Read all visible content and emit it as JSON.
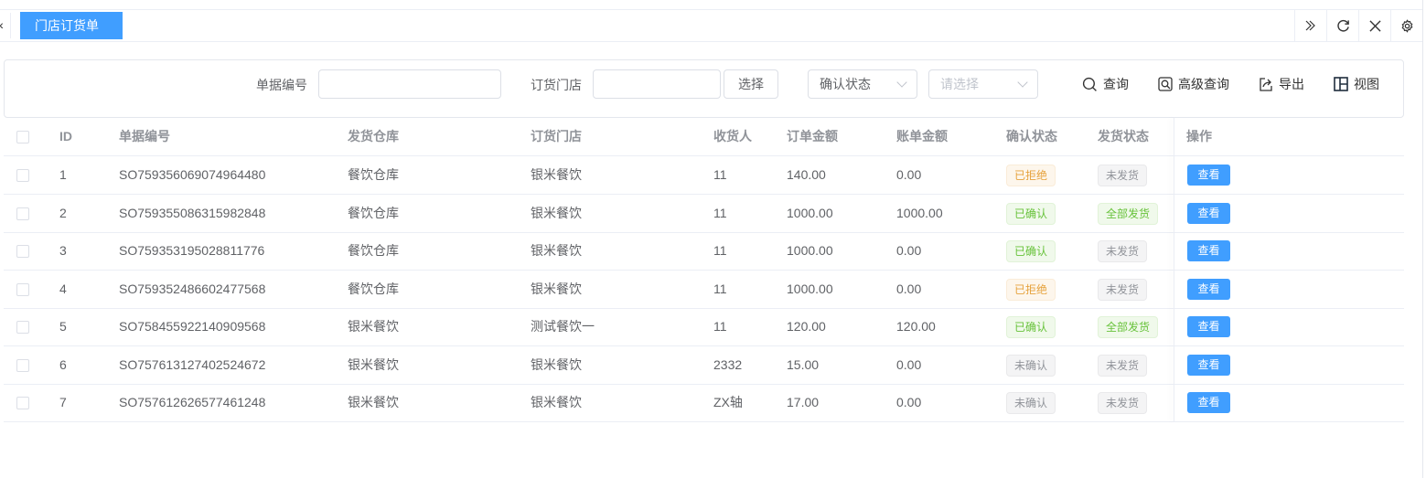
{
  "tabs": [
    {
      "label": "门店订货单",
      "active": true
    }
  ],
  "tab_icons": [
    "double-chevron-right-icon",
    "refresh-icon",
    "close-icon",
    "gear-icon"
  ],
  "filters": {
    "doc_no_label": "单据编号",
    "doc_no_value": "",
    "store_label": "订货门店",
    "store_value": "",
    "select_button": "选择",
    "status_select": "确认状态",
    "value_select_placeholder": "请选择"
  },
  "toolbar": {
    "search": "查询",
    "advanced": "高级查询",
    "export": "导出",
    "view": "视图"
  },
  "table": {
    "headers": [
      "ID",
      "单据编号",
      "发货仓库",
      "订货门店",
      "收货人",
      "订单金额",
      "账单金额",
      "确认状态",
      "发货状态",
      "操作"
    ],
    "rows": [
      [
        "1",
        "SO759356069074964480",
        "餐饮仓库",
        "银米餐饮",
        "11",
        "140.00",
        "0.00",
        "已拒绝",
        "未发货"
      ],
      [
        "2",
        "SO759355086315982848",
        "餐饮仓库",
        "银米餐饮",
        "11",
        "1000.00",
        "1000.00",
        "已确认",
        "全部发货"
      ],
      [
        "3",
        "SO759353195028811776",
        "餐饮仓库",
        "银米餐饮",
        "11",
        "1000.00",
        "0.00",
        "已确认",
        "未发货"
      ],
      [
        "4",
        "SO759352486602477568",
        "餐饮仓库",
        "银米餐饮",
        "11",
        "1000.00",
        "0.00",
        "已拒绝",
        "未发货"
      ],
      [
        "5",
        "SO758455922140909568",
        "银米餐饮",
        "测试餐饮一",
        "11",
        "120.00",
        "120.00",
        "已确认",
        "全部发货"
      ],
      [
        "6",
        "SO757613127402524672",
        "银米餐饮",
        "银米餐饮",
        "2332",
        "15.00",
        "0.00",
        "未确认",
        "未发货"
      ],
      [
        "7",
        "SO757612626577461248",
        "银米餐饮",
        "银米餐饮",
        "ZX轴",
        "17.00",
        "0.00",
        "未确认",
        "未发货"
      ]
    ],
    "action_label": "查看"
  },
  "colors": {
    "primary": "#409eff",
    "warning": "#e6a23c",
    "success": "#67c23a",
    "info": "#909399"
  }
}
